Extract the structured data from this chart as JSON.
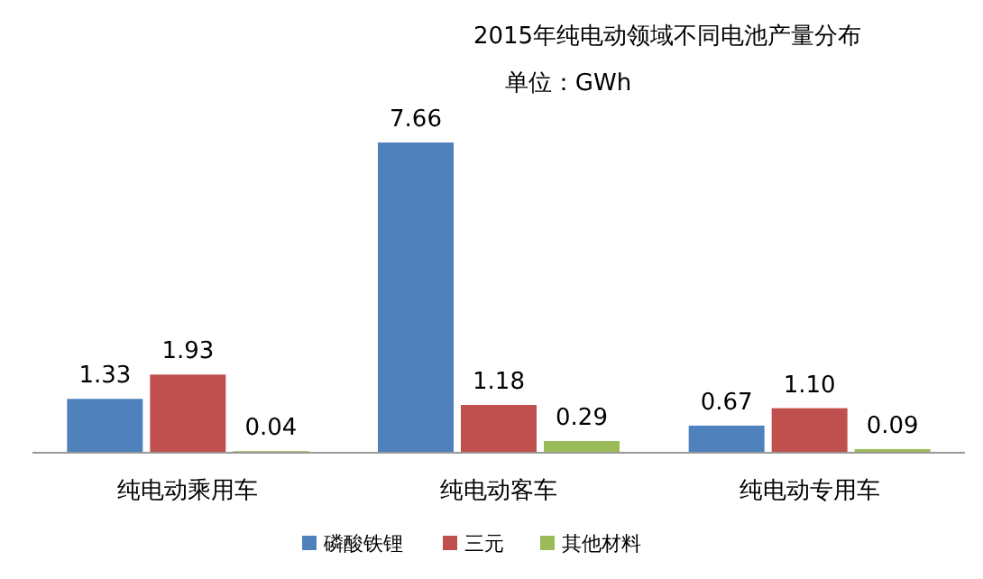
{
  "chart_data": {
    "type": "bar",
    "title": "2015年纯电动领域不同电池产量分布",
    "subtitle": "单位：GWh",
    "categories": [
      "纯电动乘用车",
      "纯电动客车",
      "纯电动专用车"
    ],
    "legend": "bottom",
    "grid": false,
    "series": [
      {
        "name": "磷酸铁锂",
        "color": "#4f81bd",
        "values": [
          1.33,
          7.66,
          0.67
        ],
        "value_labels": [
          "1.33",
          "7.66",
          "0.67"
        ]
      },
      {
        "name": "三元",
        "color": "#c0504d",
        "values": [
          1.93,
          1.18,
          1.1
        ],
        "value_labels": [
          "1.93",
          "1.18",
          "1.10"
        ]
      },
      {
        "name": "其他材料",
        "color": "#9bbb59",
        "values": [
          0.04,
          0.29,
          0.09
        ],
        "value_labels": [
          "0.04",
          "0.29",
          "0.09"
        ]
      }
    ]
  }
}
